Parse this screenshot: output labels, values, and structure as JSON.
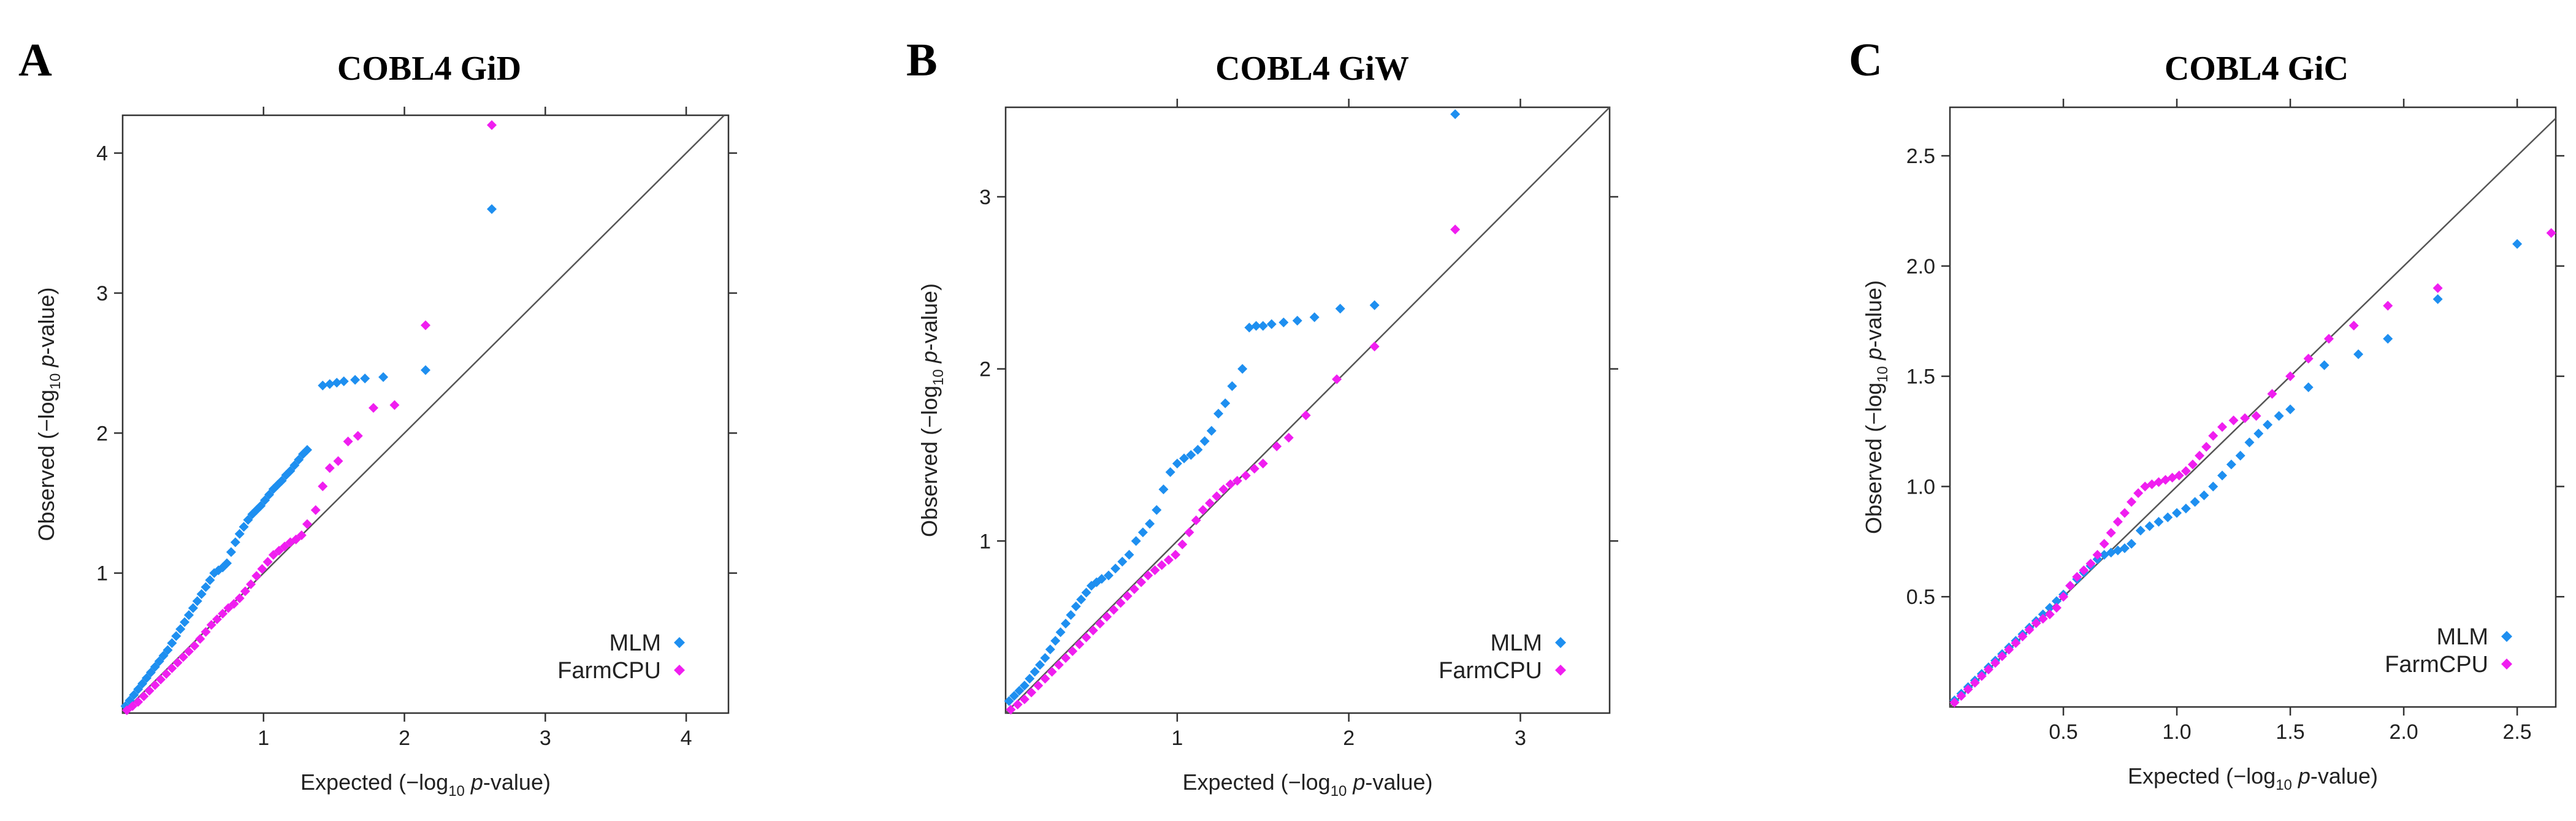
{
  "chart_data": [
    {
      "type": "scatter",
      "panel_label": "A",
      "title": "COBL4 GiD",
      "xlabel_main": "Expected (−log",
      "xlabel_sub": "10",
      "xlabel_p": "p",
      "xlabel_end": "-value)",
      "ylabel_main": "Observed (−log",
      "ylabel_sub": "10",
      "ylabel_p": "p",
      "ylabel_end": "-value)",
      "xlim": [
        0,
        4.3
      ],
      "ylim": [
        0,
        4.27
      ],
      "xticks": [
        "1",
        "2",
        "3",
        "4"
      ],
      "yticks": [
        "1",
        "2",
        "3",
        "4"
      ],
      "legend_position": "bottom-right",
      "series": [
        {
          "name": "MLM",
          "color": "#1E8FF0",
          "x": [
            0.02,
            0.05,
            0.08,
            0.11,
            0.14,
            0.17,
            0.2,
            0.23,
            0.26,
            0.29,
            0.32,
            0.35,
            0.38,
            0.41,
            0.44,
            0.47,
            0.5,
            0.53,
            0.56,
            0.59,
            0.62,
            0.65,
            0.68,
            0.71,
            0.74,
            0.77,
            0.8,
            0.83,
            0.86,
            0.89,
            0.92,
            0.95,
            0.98,
            1.01,
            1.04,
            1.07,
            1.1,
            1.13,
            1.16,
            1.19,
            1.22,
            1.25,
            1.28,
            1.31,
            1.42,
            1.47,
            1.52,
            1.57,
            1.65,
            1.72,
            1.85,
            2.15,
            2.62
          ],
          "y": [
            0.05,
            0.09,
            0.13,
            0.17,
            0.21,
            0.25,
            0.29,
            0.33,
            0.37,
            0.41,
            0.45,
            0.5,
            0.55,
            0.6,
            0.65,
            0.7,
            0.75,
            0.8,
            0.85,
            0.9,
            0.95,
            1.0,
            1.02,
            1.04,
            1.07,
            1.15,
            1.22,
            1.28,
            1.33,
            1.38,
            1.42,
            1.45,
            1.48,
            1.52,
            1.56,
            1.6,
            1.63,
            1.66,
            1.7,
            1.73,
            1.77,
            1.81,
            1.85,
            1.88,
            2.34,
            2.35,
            2.36,
            2.37,
            2.38,
            2.39,
            2.4,
            2.45,
            3.6
          ]
        },
        {
          "name": "FarmCPU",
          "color": "#F01EF0",
          "x": [
            0.03,
            0.07,
            0.11,
            0.15,
            0.19,
            0.23,
            0.27,
            0.31,
            0.35,
            0.39,
            0.43,
            0.47,
            0.51,
            0.55,
            0.59,
            0.63,
            0.67,
            0.71,
            0.75,
            0.79,
            0.83,
            0.87,
            0.91,
            0.95,
            0.99,
            1.03,
            1.07,
            1.11,
            1.15,
            1.19,
            1.23,
            1.27,
            1.31,
            1.37,
            1.42,
            1.47,
            1.53,
            1.6,
            1.67,
            1.78,
            1.93,
            2.15,
            2.62
          ],
          "y": [
            0.02,
            0.05,
            0.08,
            0.12,
            0.16,
            0.2,
            0.24,
            0.28,
            0.32,
            0.36,
            0.4,
            0.44,
            0.48,
            0.53,
            0.58,
            0.63,
            0.67,
            0.71,
            0.75,
            0.78,
            0.82,
            0.87,
            0.92,
            0.98,
            1.03,
            1.08,
            1.13,
            1.16,
            1.19,
            1.22,
            1.24,
            1.27,
            1.35,
            1.45,
            1.62,
            1.75,
            1.8,
            1.94,
            1.98,
            2.18,
            2.2,
            2.77,
            4.2
          ]
        }
      ]
    },
    {
      "type": "scatter",
      "panel_label": "B",
      "title": "COBL4 GiW",
      "xlabel_main": "Expected (−log",
      "xlabel_sub": "10",
      "xlabel_p": "p",
      "xlabel_end": "-value)",
      "ylabel_main": "Observed (−log",
      "ylabel_sub": "10",
      "ylabel_p": "p",
      "ylabel_end": "-value)",
      "xlim": [
        0,
        3.52
      ],
      "ylim": [
        0,
        3.52
      ],
      "xticks": [
        "1",
        "2",
        "3"
      ],
      "yticks": [
        "1",
        "2",
        "3"
      ],
      "legend_position": "bottom-right",
      "series": [
        {
          "name": "MLM",
          "color": "#1E8FF0",
          "x": [
            0.02,
            0.05,
            0.08,
            0.11,
            0.14,
            0.17,
            0.2,
            0.23,
            0.26,
            0.29,
            0.32,
            0.35,
            0.38,
            0.41,
            0.44,
            0.47,
            0.5,
            0.53,
            0.56,
            0.6,
            0.64,
            0.68,
            0.72,
            0.76,
            0.8,
            0.84,
            0.88,
            0.92,
            0.96,
            1.0,
            1.04,
            1.08,
            1.12,
            1.16,
            1.2,
            1.24,
            1.28,
            1.32,
            1.38,
            1.42,
            1.46,
            1.5,
            1.55,
            1.62,
            1.7,
            1.8,
            1.95,
            2.15,
            2.62
          ],
          "y": [
            0.07,
            0.1,
            0.13,
            0.16,
            0.2,
            0.24,
            0.28,
            0.32,
            0.37,
            0.42,
            0.47,
            0.52,
            0.57,
            0.62,
            0.66,
            0.7,
            0.74,
            0.76,
            0.78,
            0.8,
            0.84,
            0.88,
            0.92,
            1.0,
            1.05,
            1.1,
            1.18,
            1.3,
            1.4,
            1.45,
            1.48,
            1.5,
            1.53,
            1.58,
            1.64,
            1.74,
            1.8,
            1.9,
            2.0,
            2.24,
            2.25,
            2.25,
            2.26,
            2.27,
            2.28,
            2.3,
            2.35,
            2.37,
            3.48
          ]
        },
        {
          "name": "FarmCPU",
          "color": "#F01EF0",
          "x": [
            0.03,
            0.07,
            0.11,
            0.15,
            0.19,
            0.23,
            0.27,
            0.31,
            0.35,
            0.39,
            0.43,
            0.47,
            0.51,
            0.55,
            0.59,
            0.63,
            0.67,
            0.71,
            0.75,
            0.79,
            0.83,
            0.87,
            0.91,
            0.95,
            0.99,
            1.03,
            1.07,
            1.11,
            1.15,
            1.19,
            1.23,
            1.27,
            1.31,
            1.35,
            1.4,
            1.45,
            1.5,
            1.58,
            1.65,
            1.75,
            1.93,
            2.15,
            2.62
          ],
          "y": [
            0.02,
            0.05,
            0.08,
            0.12,
            0.16,
            0.2,
            0.24,
            0.28,
            0.32,
            0.36,
            0.4,
            0.44,
            0.48,
            0.52,
            0.56,
            0.6,
            0.64,
            0.68,
            0.72,
            0.76,
            0.8,
            0.83,
            0.86,
            0.89,
            0.92,
            0.98,
            1.05,
            1.12,
            1.18,
            1.22,
            1.26,
            1.3,
            1.33,
            1.35,
            1.38,
            1.42,
            1.45,
            1.55,
            1.6,
            1.73,
            1.94,
            2.13,
            2.81
          ]
        }
      ]
    },
    {
      "type": "scatter",
      "panel_label": "C",
      "title": "COBL4 GiC",
      "xlabel_main": "Expected (−log",
      "xlabel_sub": "10",
      "xlabel_p": "p",
      "xlabel_end": "-value)",
      "ylabel_main": "Observed (−log",
      "ylabel_sub": "10",
      "ylabel_p": "p",
      "ylabel_end": "-value)",
      "xlim": [
        0,
        2.67
      ],
      "ylim": [
        0,
        2.72
      ],
      "xticks": [
        "0.5",
        "1.0",
        "1.5",
        "2.0",
        "2.5"
      ],
      "yticks": [
        "0.5",
        "1.0",
        "1.5",
        "2.0",
        "2.5"
      ],
      "legend_position": "bottom-right",
      "series": [
        {
          "name": "MLM",
          "color": "#1E8FF0",
          "x": [
            0.02,
            0.05,
            0.08,
            0.11,
            0.14,
            0.17,
            0.2,
            0.23,
            0.26,
            0.29,
            0.32,
            0.35,
            0.38,
            0.41,
            0.44,
            0.47,
            0.5,
            0.53,
            0.56,
            0.59,
            0.62,
            0.65,
            0.68,
            0.71,
            0.74,
            0.77,
            0.8,
            0.84,
            0.88,
            0.92,
            0.96,
            1.0,
            1.04,
            1.08,
            1.12,
            1.16,
            1.2,
            1.24,
            1.28,
            1.32,
            1.36,
            1.4,
            1.45,
            1.5,
            1.58,
            1.65,
            1.8,
            1.93,
            2.15,
            2.5
          ],
          "y": [
            0.03,
            0.06,
            0.09,
            0.12,
            0.15,
            0.18,
            0.21,
            0.24,
            0.27,
            0.3,
            0.33,
            0.36,
            0.39,
            0.42,
            0.45,
            0.48,
            0.51,
            0.55,
            0.58,
            0.61,
            0.64,
            0.67,
            0.69,
            0.7,
            0.71,
            0.72,
            0.74,
            0.8,
            0.82,
            0.84,
            0.86,
            0.88,
            0.9,
            0.93,
            0.96,
            1.0,
            1.05,
            1.1,
            1.14,
            1.2,
            1.24,
            1.28,
            1.32,
            1.35,
            1.45,
            1.55,
            1.6,
            1.67,
            1.85,
            2.1
          ]
        },
        {
          "name": "FarmCPU",
          "color": "#F01EF0",
          "x": [
            0.02,
            0.05,
            0.08,
            0.11,
            0.14,
            0.17,
            0.2,
            0.23,
            0.26,
            0.29,
            0.32,
            0.35,
            0.38,
            0.41,
            0.44,
            0.47,
            0.5,
            0.53,
            0.56,
            0.59,
            0.62,
            0.65,
            0.68,
            0.71,
            0.74,
            0.77,
            0.8,
            0.83,
            0.86,
            0.89,
            0.92,
            0.95,
            0.98,
            1.01,
            1.04,
            1.07,
            1.1,
            1.13,
            1.16,
            1.2,
            1.25,
            1.3,
            1.35,
            1.42,
            1.5,
            1.58,
            1.67,
            1.78,
            1.93,
            2.15,
            2.65
          ],
          "y": [
            0.02,
            0.05,
            0.08,
            0.11,
            0.14,
            0.17,
            0.2,
            0.23,
            0.26,
            0.29,
            0.32,
            0.35,
            0.38,
            0.4,
            0.42,
            0.45,
            0.5,
            0.55,
            0.59,
            0.62,
            0.65,
            0.69,
            0.74,
            0.79,
            0.84,
            0.88,
            0.93,
            0.97,
            1.0,
            1.01,
            1.02,
            1.03,
            1.04,
            1.05,
            1.07,
            1.1,
            1.14,
            1.18,
            1.23,
            1.27,
            1.3,
            1.31,
            1.32,
            1.42,
            1.5,
            1.58,
            1.67,
            1.73,
            1.82,
            1.9,
            2.15
          ]
        }
      ]
    }
  ]
}
